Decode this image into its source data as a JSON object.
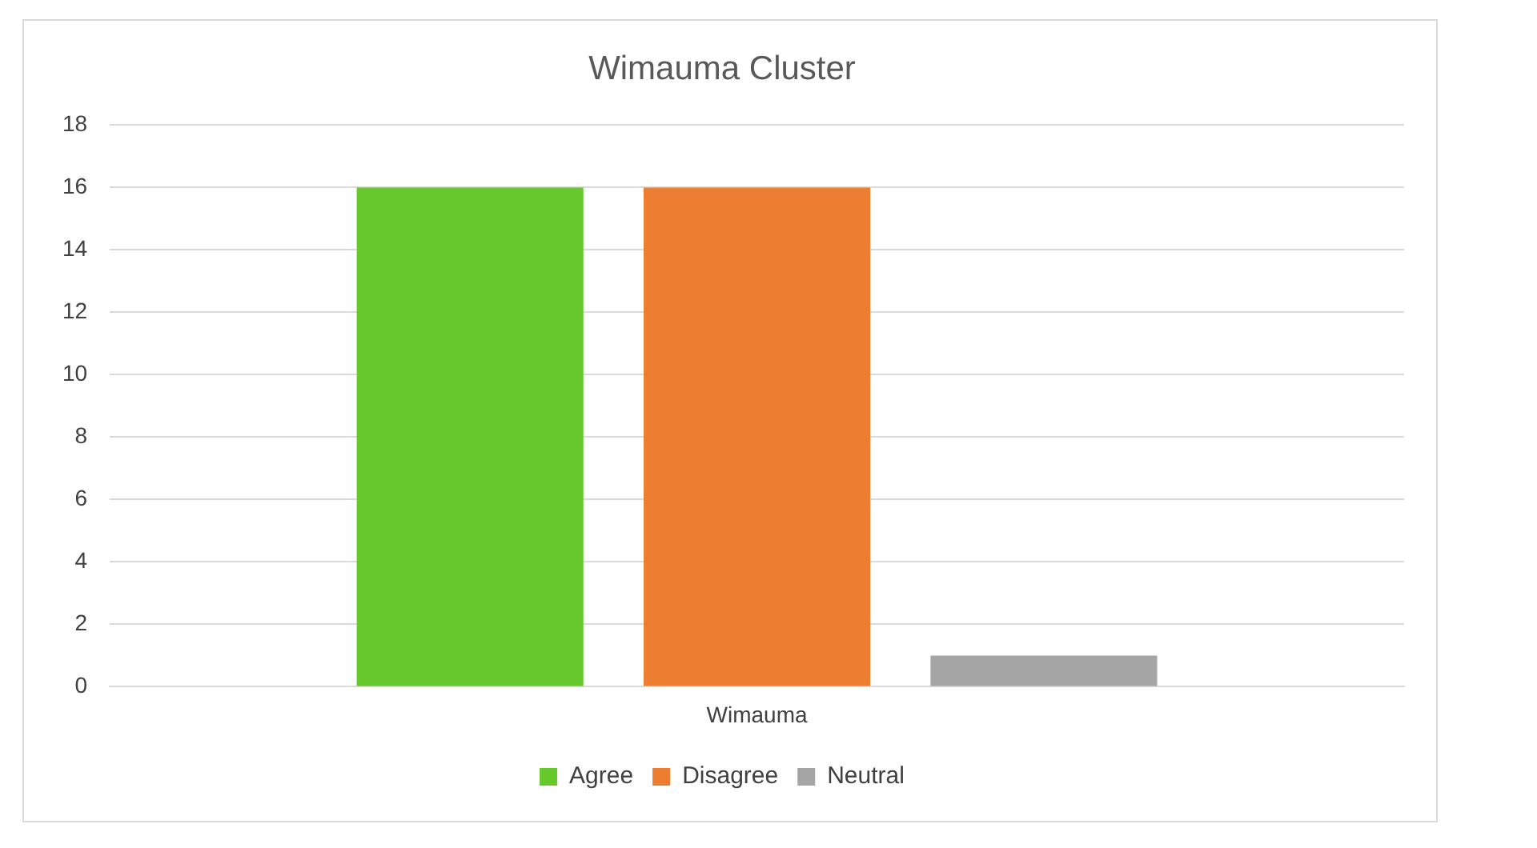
{
  "chart_data": {
    "type": "bar",
    "title": "Wimauma Cluster",
    "categories": [
      "Wimauma"
    ],
    "series": [
      {
        "name": "Agree",
        "color": "#66c82a",
        "values": [
          16
        ]
      },
      {
        "name": "Disagree",
        "color": "#ed7d31",
        "values": [
          16
        ]
      },
      {
        "name": "Neutral",
        "color": "#a5a5a5",
        "values": [
          1
        ]
      }
    ],
    "ylim": [
      0,
      18
    ],
    "yticks": [
      0,
      2,
      4,
      6,
      8,
      10,
      12,
      14,
      16,
      18
    ],
    "grid": "y",
    "legend": "bottom"
  }
}
